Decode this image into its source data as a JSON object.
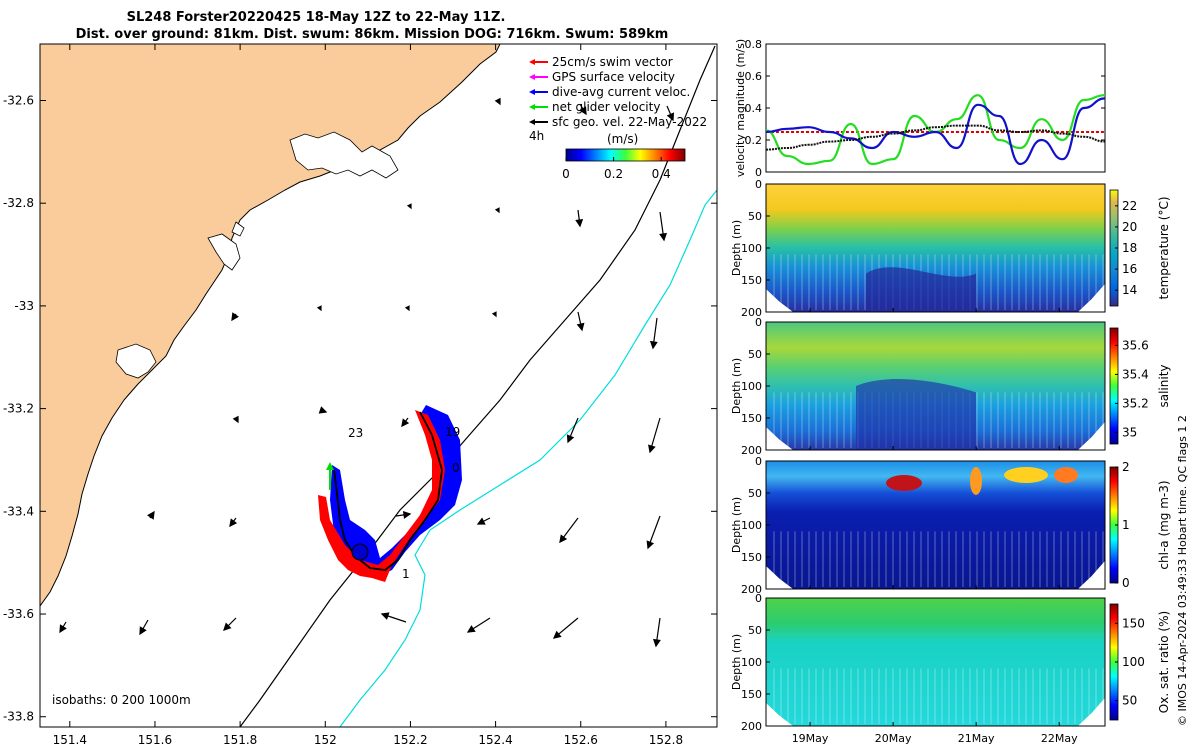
{
  "title": {
    "line1": "SL248 Forster20220425 18-May 12Z to 22-May 11Z.",
    "line2": "Dist. over ground: 81km. Dist. swum: 86km. Mission DOG: 716km. Swum: 589km"
  },
  "map": {
    "lon_ticks": [
      "151.4",
      "151.6",
      "151.8",
      "152",
      "152.2",
      "152.4",
      "152.6",
      "152.8"
    ],
    "lat_ticks": [
      "-32.6",
      "-32.8",
      "-33",
      "-33.2",
      "-33.4",
      "-33.6",
      "-33.8"
    ],
    "lon_range": [
      151.33,
      152.92
    ],
    "lat_range": [
      -33.82,
      -32.49
    ],
    "land_color": "#facc9b",
    "legend": [
      {
        "label": "25cm/s swim vector",
        "color": "#ff0000"
      },
      {
        "label": "GPS surface velocity",
        "color": "#ff00ff"
      },
      {
        "label": "dive-avg current veloc.",
        "color": "#0000ff"
      },
      {
        "label": "net glider velocity",
        "color": "#00dd00"
      },
      {
        "label": "sfc geo. vel. 22-May-2022",
        "color": "#000000"
      }
    ],
    "colorbar": {
      "label": "(m/s)",
      "ticks": [
        "0",
        "0.2",
        "0.4"
      ],
      "range": [
        0,
        0.5
      ]
    },
    "time_label": "4h",
    "track_day_labels": [
      "23",
      "19",
      "0",
      "1"
    ],
    "isobaths_label": "isobaths: 0   200  1000m"
  },
  "velocity_panel": {
    "ylabel": "velocity magnitude (m/s)",
    "yticks": [
      "0",
      "0.2",
      "0.4",
      "0.6",
      "0.8"
    ],
    "ylim": [
      0,
      0.8
    ],
    "series_colors": {
      "red": "#dd0000",
      "green": "#22dd22",
      "blue": "#1111cc",
      "black": "#111111"
    }
  },
  "sections": [
    {
      "key": "temp",
      "ylabel": "Depth (m)",
      "cbar_label": "temperature (°C)",
      "cbar_ticks": [
        "14",
        "16",
        "18",
        "20",
        "22"
      ],
      "cbar_range": [
        12.5,
        23.5
      ]
    },
    {
      "key": "sal",
      "ylabel": "Depth (m)",
      "cbar_label": "salinity",
      "cbar_ticks": [
        "35",
        "35.2",
        "35.4",
        "35.6"
      ],
      "cbar_range": [
        34.92,
        35.72
      ]
    },
    {
      "key": "chl",
      "ylabel": "Depth (m)",
      "cbar_label": "chl-a (mg m-3)",
      "cbar_ticks": [
        "0",
        "1",
        "2"
      ],
      "cbar_range": [
        0,
        2
      ]
    },
    {
      "key": "oxy",
      "ylabel": "Depth (m)",
      "cbar_label": "Ox. sat. ratio (%)",
      "cbar_ticks": [
        "50",
        "100",
        "150"
      ],
      "cbar_range": [
        25,
        175
      ]
    }
  ],
  "depth_ticks": [
    "0",
    "50",
    "100",
    "150",
    "200"
  ],
  "date_ticks": [
    "19May",
    "20May",
    "21May",
    "22May"
  ],
  "credit": "© IMOS 14-Apr-2024 03:49:33 Hobart time. QC flags 1  2",
  "chart_data": [
    {
      "type": "line",
      "title": "",
      "xlabel": "",
      "ylabel": "velocity magnitude (m/s)",
      "ylim": [
        0,
        0.8
      ],
      "x": [
        0,
        0.25,
        0.5,
        0.75,
        1.0,
        1.25,
        1.5,
        1.75,
        2.0,
        2.25,
        2.5,
        2.75,
        3.0,
        3.25,
        3.5,
        3.75,
        4.0
      ],
      "series": [
        {
          "values": [
            0.25,
            0.25,
            0.25,
            0.25,
            0.25,
            0.25,
            0.25,
            0.25,
            0.25,
            0.25,
            0.25,
            0.25,
            0.25,
            0.25,
            0.25,
            0.25,
            0.25
          ]
        },
        {
          "values": [
            0.26,
            0.1,
            0.05,
            0.07,
            0.3,
            0.05,
            0.08,
            0.35,
            0.25,
            0.33,
            0.48,
            0.2,
            0.15,
            0.33,
            0.2,
            0.45,
            0.48
          ]
        },
        {
          "values": [
            0.25,
            0.27,
            0.28,
            0.25,
            0.21,
            0.15,
            0.25,
            0.22,
            0.25,
            0.15,
            0.42,
            0.35,
            0.05,
            0.2,
            0.08,
            0.4,
            0.46
          ]
        },
        {
          "values": [
            0.14,
            0.15,
            0.17,
            0.19,
            0.2,
            0.22,
            0.24,
            0.26,
            0.28,
            0.29,
            0.29,
            0.26,
            0.25,
            0.26,
            0.24,
            0.22,
            0.19
          ]
        }
      ]
    },
    {
      "type": "heatmap",
      "ylabel": "Depth (m)",
      "colorbar_label": "temperature (°C)",
      "colorbar_range": [
        12.5,
        23.5
      ],
      "ylim": [
        200,
        0
      ]
    },
    {
      "type": "heatmap",
      "ylabel": "Depth (m)",
      "colorbar_label": "salinity",
      "colorbar_range": [
        34.92,
        35.72
      ],
      "ylim": [
        200,
        0
      ]
    },
    {
      "type": "heatmap",
      "ylabel": "Depth (m)",
      "colorbar_label": "chl-a (mg m-3)",
      "colorbar_range": [
        0,
        2
      ],
      "ylim": [
        200,
        0
      ]
    },
    {
      "type": "heatmap",
      "ylabel": "Depth (m)",
      "colorbar_label": "Ox. sat. ratio (%)",
      "colorbar_range": [
        25,
        175
      ],
      "ylim": [
        200,
        0
      ]
    }
  ]
}
